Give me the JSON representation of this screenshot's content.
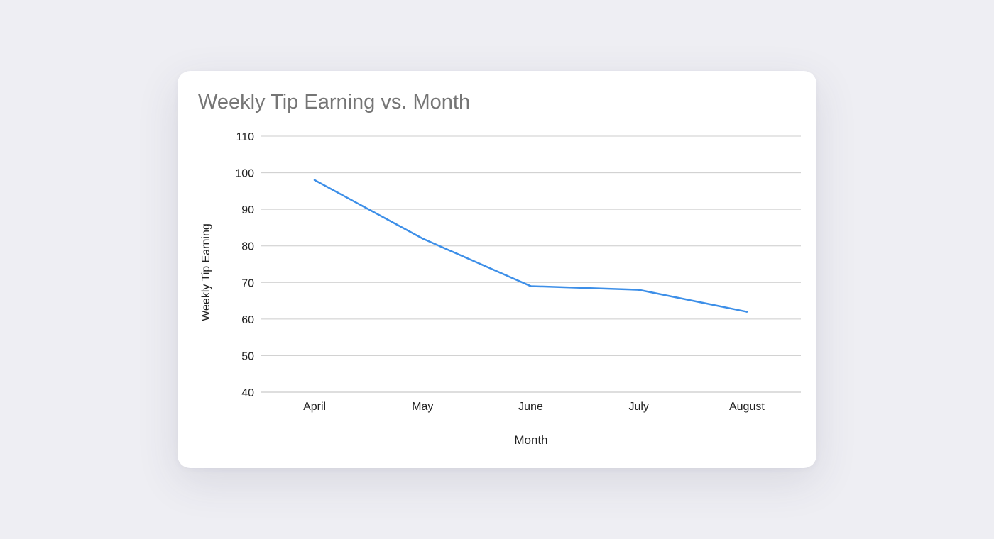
{
  "chart_data": {
    "type": "line",
    "title": "Weekly Tip Earning vs. Month",
    "xlabel": "Month",
    "ylabel": "Weekly Tip Earning",
    "categories": [
      "April",
      "May",
      "June",
      "July",
      "August"
    ],
    "series": [
      {
        "values": [
          98,
          82,
          69,
          68,
          62
        ],
        "color": "#3d8fe8"
      }
    ],
    "ylim": [
      40,
      110
    ],
    "yticks": [
      40,
      50,
      60,
      70,
      80,
      90,
      100,
      110
    ],
    "grid": true,
    "legend": "none"
  },
  "colors": {
    "background": "#eeeef3",
    "card": "#ffffff",
    "gridline": "#cccccc",
    "title": "#757575"
  }
}
